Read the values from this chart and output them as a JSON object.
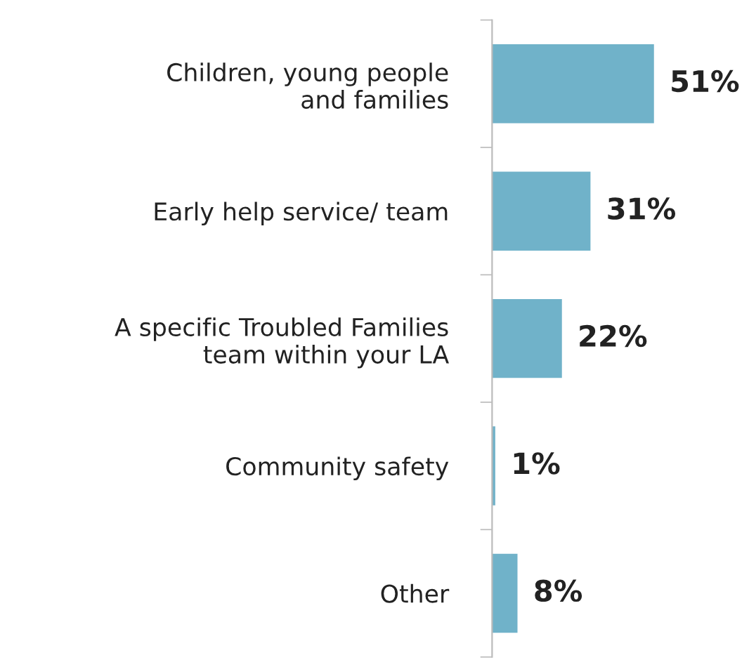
{
  "chart_data": {
    "type": "bar",
    "orientation": "horizontal",
    "categories": [
      "Children, young people\nand families",
      "Early help service/ team",
      "A specific Troubled Families\nteam within your LA",
      "Community safety",
      "Other"
    ],
    "values": [
      51,
      31,
      22,
      1,
      8
    ],
    "color": "#70b2c9",
    "value_labels": [
      "51%",
      "31%",
      "22%",
      "1%",
      "8%"
    ],
    "grid": false,
    "legend": false
  }
}
